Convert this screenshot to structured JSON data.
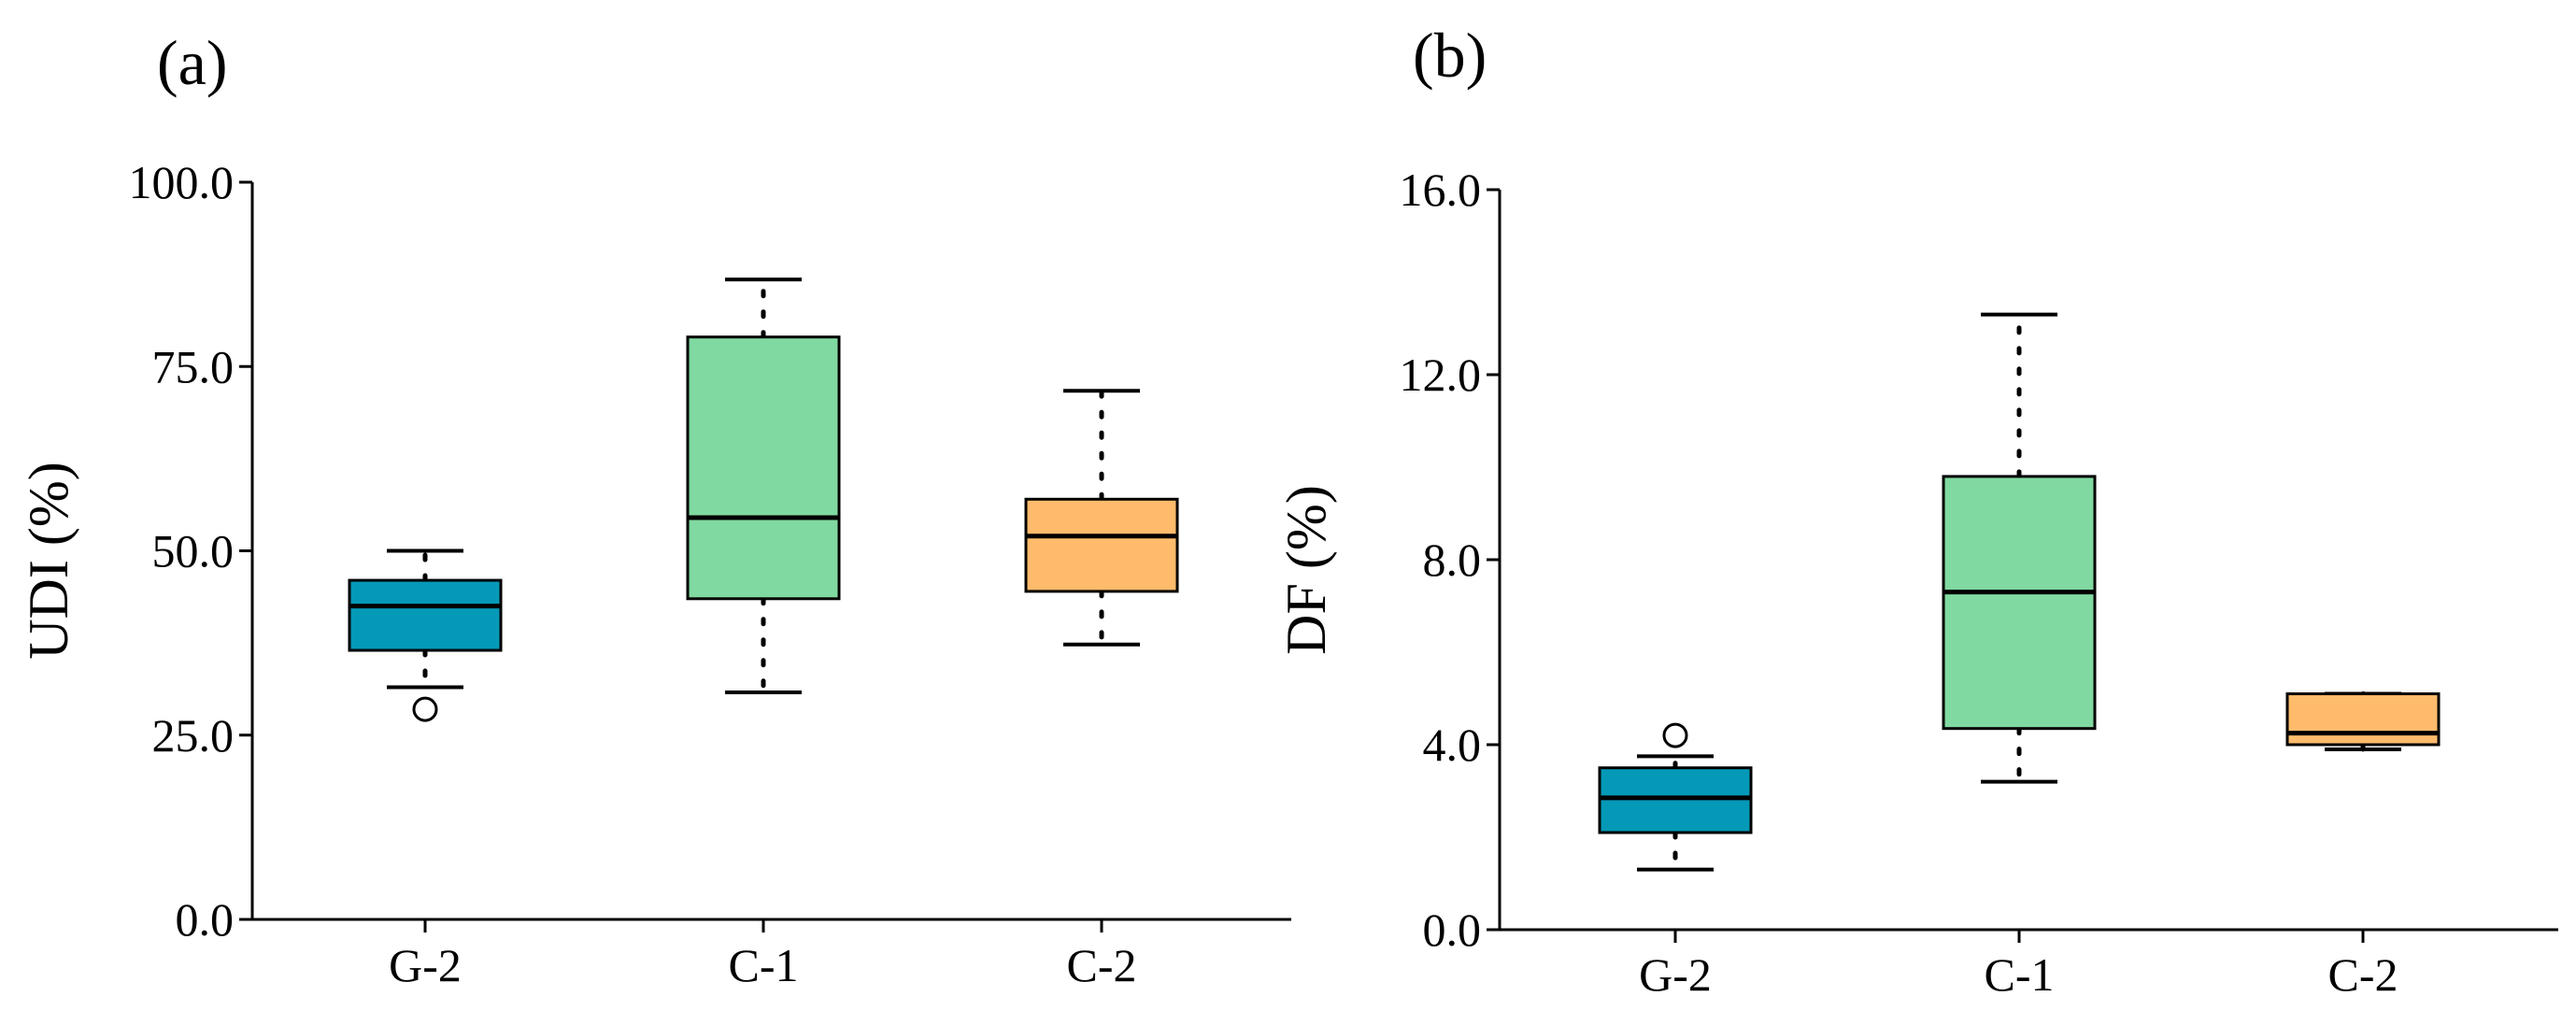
{
  "chart_data": [
    {
      "type": "boxplot",
      "panel_label": "(a)",
      "title": "",
      "xlabel": "",
      "ylabel": "UDI (%)",
      "ylim": [
        0,
        100
      ],
      "yticks": [
        0,
        25,
        50,
        75,
        100
      ],
      "ytick_labels": [
        "0.0",
        "25.0",
        "50.0",
        "75.0",
        "100.0"
      ],
      "categories": [
        "G-2",
        "C-1",
        "C-2"
      ],
      "colors": [
        "#0599b8",
        "#80d9a0",
        "#ffbb6c"
      ],
      "boxes": [
        {
          "whisker_low": 31.5,
          "q1": 36.5,
          "median": 42.5,
          "q3": 46.0,
          "whisker_high": 50.0,
          "outliers": [
            28.5
          ]
        },
        {
          "whisker_low": 30.8,
          "q1": 43.5,
          "median": 54.5,
          "q3": 79.0,
          "whisker_high": 86.8,
          "outliers": []
        },
        {
          "whisker_low": 37.3,
          "q1": 44.5,
          "median": 52.0,
          "q3": 57.0,
          "whisker_high": 71.7,
          "outliers": []
        }
      ]
    },
    {
      "type": "boxplot",
      "panel_label": "(b)",
      "title": "",
      "xlabel": "",
      "ylabel": "DF (%)",
      "ylim": [
        0,
        16
      ],
      "yticks": [
        0,
        4,
        8,
        12,
        16
      ],
      "ytick_labels": [
        "0.0",
        "4.0",
        "8.0",
        "12.0",
        "16.0"
      ],
      "categories": [
        "G-2",
        "C-1",
        "C-2"
      ],
      "colors": [
        "#0599b8",
        "#80d9a0",
        "#ffbb6c"
      ],
      "boxes": [
        {
          "whisker_low": 1.3,
          "q1": 2.1,
          "median": 2.85,
          "q3": 3.5,
          "whisker_high": 3.75,
          "outliers": [
            4.2
          ]
        },
        {
          "whisker_low": 3.2,
          "q1": 4.35,
          "median": 7.3,
          "q3": 9.8,
          "whisker_high": 13.3,
          "outliers": []
        },
        {
          "whisker_low": 3.9,
          "q1": 4.0,
          "median": 4.25,
          "q3": 5.1,
          "whisker_high": 5.1,
          "outliers": []
        }
      ]
    }
  ]
}
